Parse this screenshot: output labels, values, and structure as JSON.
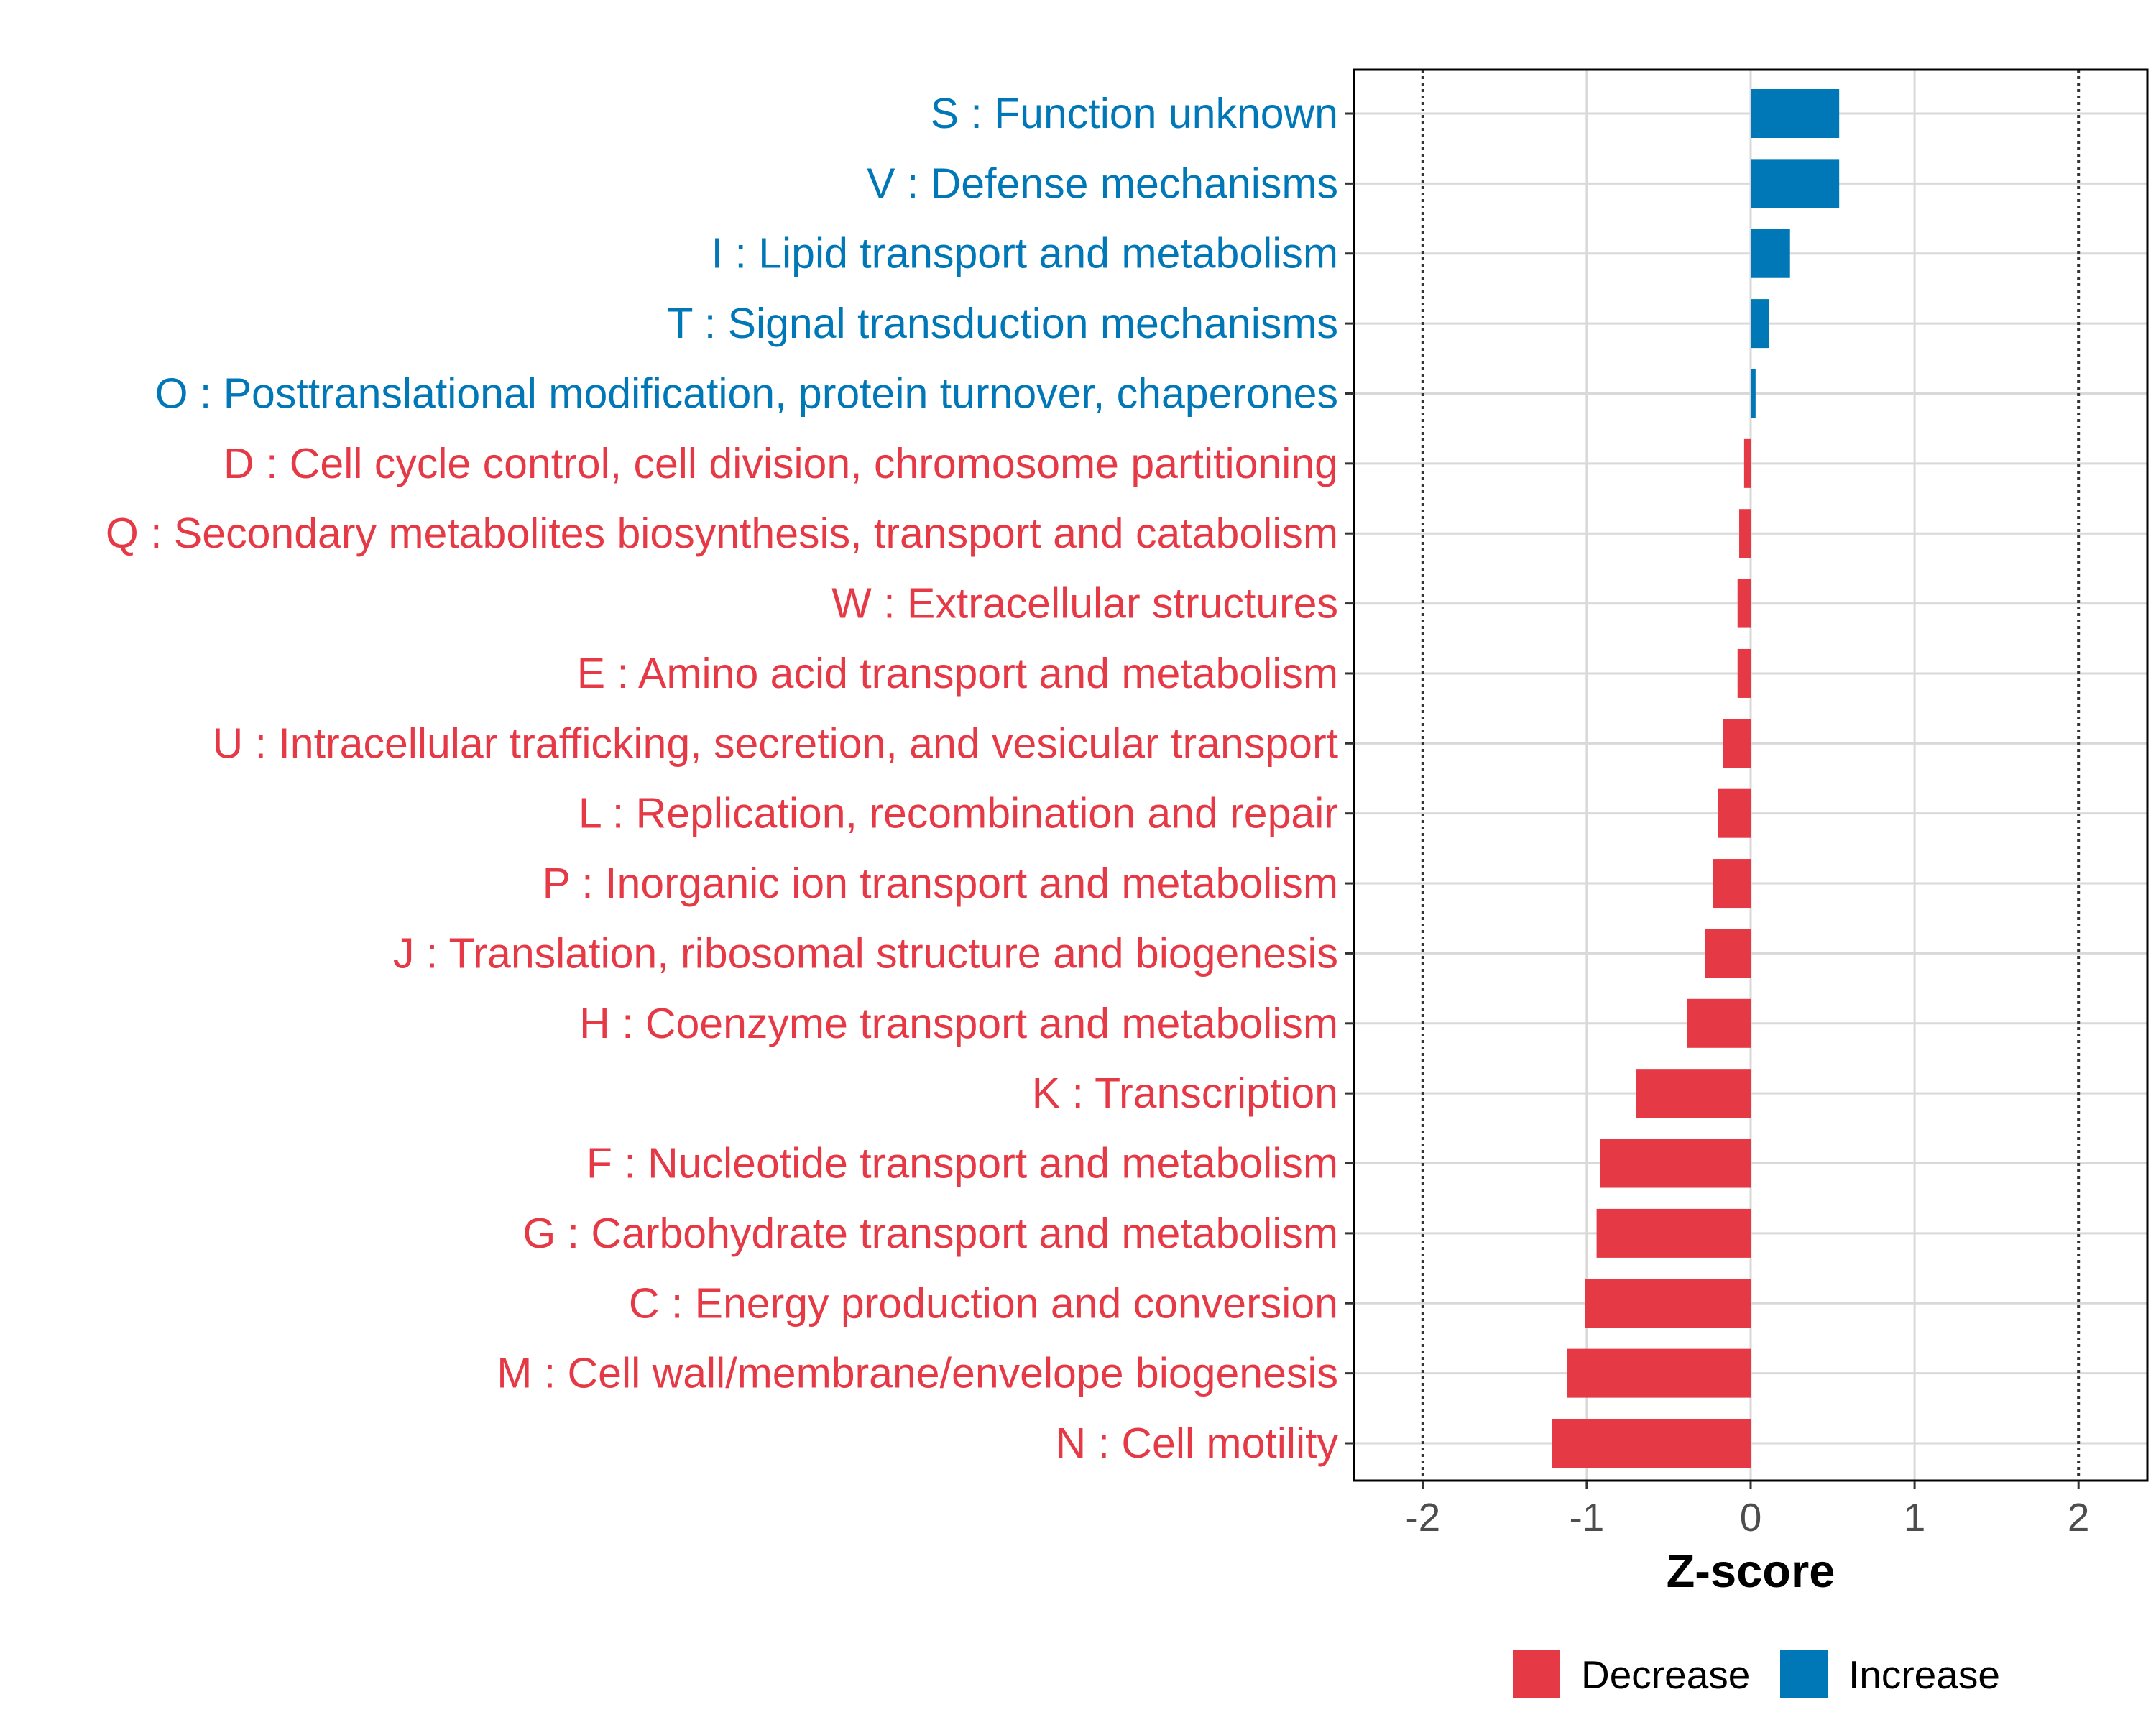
{
  "chart_data": {
    "type": "bar",
    "orientation": "horizontal",
    "title": "",
    "xlabel": "Z-score",
    "ylabel": "",
    "xlim": [
      -2.42,
      2.42
    ],
    "xticks": [
      -2,
      -1,
      0,
      1,
      2
    ],
    "xtick_labels": [
      "-2",
      "-1",
      "0",
      "1",
      "2"
    ],
    "reference_lines": [
      -2,
      2
    ],
    "grid": true,
    "legend_position": "bottom",
    "categories": [
      "S : Function unknown",
      "V : Defense mechanisms",
      "I : Lipid transport and metabolism",
      "T : Signal transduction mechanisms",
      "O : Posttranslational modification, protein turnover, chaperones",
      "D : Cell cycle control, cell division, chromosome partitioning",
      "Q : Secondary metabolites biosynthesis, transport and catabolism",
      "W : Extracellular structures",
      "E : Amino acid transport and metabolism",
      "U : Intracellular trafficking, secretion, and vesicular transport",
      "L : Replication, recombination and repair",
      "P : Inorganic ion transport and metabolism",
      "J : Translation, ribosomal structure and biogenesis",
      "H : Coenzyme transport and metabolism",
      "K : Transcription",
      "F : Nucleotide transport and metabolism",
      "G : Carbohydrate transport and metabolism",
      "C : Energy production and conversion",
      "M : Cell wall/membrane/envelope biogenesis",
      "N : Cell motility"
    ],
    "values": [
      0.54,
      0.54,
      0.24,
      0.11,
      0.03,
      -0.04,
      -0.07,
      -0.08,
      -0.08,
      -0.17,
      -0.2,
      -0.23,
      -0.28,
      -0.39,
      -0.7,
      -0.92,
      -0.94,
      -1.01,
      -1.12,
      -1.21
    ],
    "groups": [
      "Increase",
      "Increase",
      "Increase",
      "Increase",
      "Increase",
      "Decrease",
      "Decrease",
      "Decrease",
      "Decrease",
      "Decrease",
      "Decrease",
      "Decrease",
      "Decrease",
      "Decrease",
      "Decrease",
      "Decrease",
      "Decrease",
      "Decrease",
      "Decrease",
      "Decrease"
    ],
    "legend": [
      {
        "name": "Decrease",
        "color": "#e63946"
      },
      {
        "name": "Increase",
        "color": "#0077b6"
      }
    ]
  }
}
